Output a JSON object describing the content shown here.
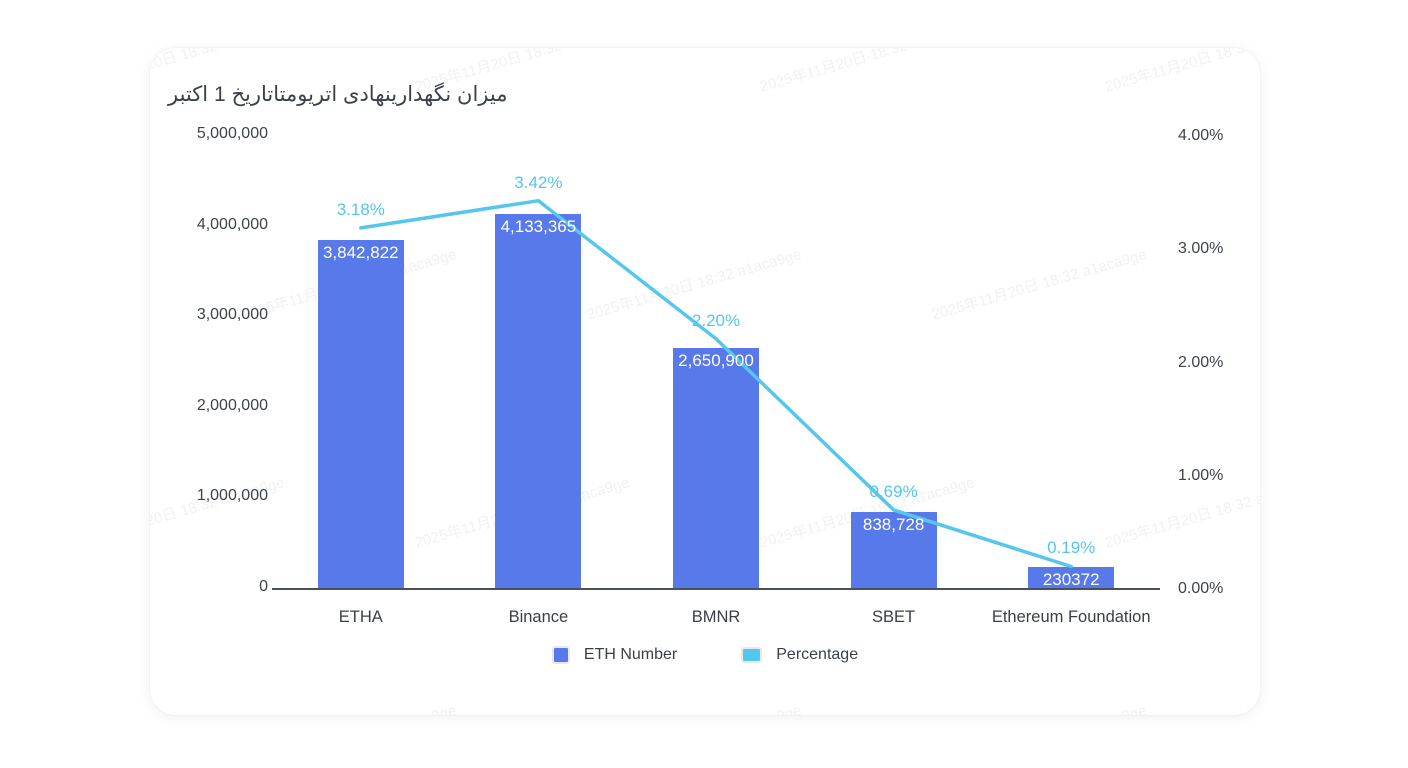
{
  "title": "میزان نگهدارینهادی اتریومتاتاریخ 1 اکتبر",
  "watermark": "2025年11月20日 18:32 a1aca9ge",
  "colors": {
    "bar": "#5879e9",
    "line": "#55c6ed",
    "axis_text": "#3d434b",
    "axis_line": "#4a5058",
    "bar_label_text": "#ffffff"
  },
  "left_axis": {
    "ticks": [
      "5,000,000",
      "4,000,000",
      "3,000,000",
      "2,000,000",
      "1,000,000",
      "0"
    ]
  },
  "right_axis": {
    "ticks": [
      "4.00%",
      "3.00%",
      "2.00%",
      "1.00%",
      "0.00%"
    ]
  },
  "legend": [
    {
      "label": "ETH Number",
      "color": "#5879e9"
    },
    {
      "label": "Percentage",
      "color": "#55c6ed"
    }
  ],
  "chart_data": {
    "type": "bar+line",
    "title": "میزان نگهدارینهادی اتریومتاتاریخ 1 اکتبر",
    "categories": [
      "ETHA",
      "Binance",
      "BMNR",
      "SBET",
      "Ethereum Foundation"
    ],
    "series": [
      {
        "name": "ETH Number",
        "type": "bar",
        "axis": "left",
        "values": [
          3842822,
          4133365,
          2650900,
          838728,
          230372
        ],
        "labels": [
          "3,842,822",
          "4,133,365",
          "2,650,900",
          "838,728",
          "230372"
        ]
      },
      {
        "name": "Percentage",
        "type": "line",
        "axis": "right",
        "values": [
          3.18,
          3.42,
          2.2,
          0.69,
          0.19
        ],
        "labels": [
          "3.18%",
          "3.42%",
          "2.20%",
          "0.69%",
          "0.19%"
        ]
      }
    ],
    "left_ylim": [
      0,
      5000000
    ],
    "right_ylim": [
      0,
      4
    ],
    "grid": false,
    "legend_position": "bottom"
  }
}
